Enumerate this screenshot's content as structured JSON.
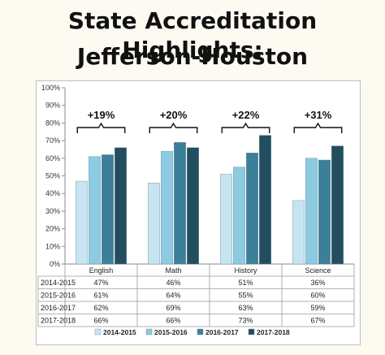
{
  "header": {
    "line1": "State Accreditation Highlights:",
    "line2": "Jefferson-Houston"
  },
  "chart_data": {
    "type": "bar",
    "categories": [
      "English",
      "Math",
      "History",
      "Science"
    ],
    "series": [
      {
        "name": "2014-2015",
        "values": [
          47,
          46,
          51,
          36
        ],
        "labels": [
          "47%",
          "46%",
          "51%",
          "36%"
        ],
        "color": "#c7e5f0"
      },
      {
        "name": "2015-2016",
        "values": [
          61,
          64,
          55,
          60
        ],
        "labels": [
          "61%",
          "64%",
          "55%",
          "60%"
        ],
        "color": "#8ccbe1"
      },
      {
        "name": "2016-2017",
        "values": [
          62,
          69,
          63,
          59
        ],
        "labels": [
          "62%",
          "69%",
          "63%",
          "59%"
        ],
        "color": "#3c7f99"
      },
      {
        "name": "2017-2018",
        "values": [
          66,
          66,
          73,
          67
        ],
        "labels": [
          "66%",
          "66%",
          "73%",
          "67%"
        ],
        "color": "#234e5f"
      }
    ],
    "annotations": [
      "+19%",
      "+20%",
      "+22%",
      "+31%"
    ],
    "ylim": [
      0,
      100
    ],
    "yticks": [
      "0%",
      "10%",
      "20%",
      "30%",
      "40%",
      "50%",
      "60%",
      "70%",
      "80%",
      "90%",
      "100%"
    ],
    "grid": false,
    "legend": "bottom",
    "data_table": true
  }
}
